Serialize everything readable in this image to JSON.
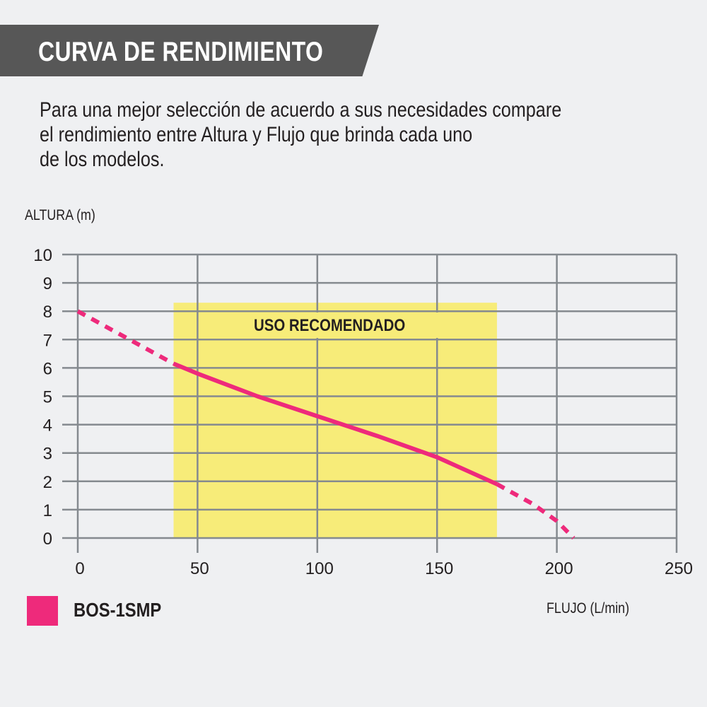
{
  "header": {
    "title": "CURVA DE RENDIMIENTO"
  },
  "intro": {
    "lines": [
      "Para una mejor selección de acuerdo a sus necesidades compare",
      "el rendimiento entre Altura y Flujo que brinda cada uno",
      "de los modelos."
    ]
  },
  "colors": {
    "banner": "#575757",
    "background": "#eff0f2",
    "curve": "#ee2a7b",
    "recommended_band": "#f7ec79",
    "grid": "#858a8f"
  },
  "legend": {
    "items": [
      {
        "label": "BOS-1SMP",
        "color": "#ee2a7b"
      }
    ]
  },
  "chart_data": {
    "type": "line",
    "title": "CURVA DE RENDIMIENTO",
    "xlabel": "FLUJO (L/min)",
    "ylabel": "ALTURA (m)",
    "xlim": [
      0,
      250
    ],
    "ylim": [
      0,
      10
    ],
    "x_ticks": [
      0,
      50,
      100,
      150,
      200,
      250
    ],
    "y_ticks": [
      0,
      1,
      2,
      3,
      4,
      5,
      6,
      7,
      8,
      9,
      10
    ],
    "grid": true,
    "legend_position": "bottom-left",
    "annotations": [
      {
        "type": "shaded_region",
        "label": "USO RECOMENDADO",
        "x_range": [
          40,
          175
        ],
        "y_range": [
          0,
          8.3
        ],
        "color": "#f7ec79"
      }
    ],
    "series": [
      {
        "name": "BOS-1SMP",
        "color": "#ee2a7b",
        "x": [
          0,
          40,
          50,
          75,
          100,
          125,
          150,
          175,
          190,
          200,
          207
        ],
        "y": [
          8.0,
          6.15,
          5.8,
          5.0,
          4.3,
          3.6,
          2.85,
          1.9,
          1.2,
          0.6,
          0.0
        ],
        "style_segments": [
          {
            "x_range": [
              0,
              40
            ],
            "style": "dashed"
          },
          {
            "x_range": [
              40,
              175
            ],
            "style": "solid"
          },
          {
            "x_range": [
              175,
              207
            ],
            "style": "dashed"
          }
        ]
      }
    ]
  }
}
